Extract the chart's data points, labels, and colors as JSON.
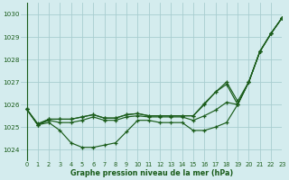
{
  "title": "Graphe pression niveau de la mer (hPa)",
  "background_color": "#d4ecee",
  "grid_color": "#a8cdd0",
  "line_color": "#1a5c1a",
  "xlim": [
    -0.5,
    23
  ],
  "ylim": [
    1023.5,
    1030.5
  ],
  "yticks": [
    1024,
    1025,
    1026,
    1027,
    1028,
    1029,
    1030
  ],
  "xticks": [
    0,
    1,
    2,
    3,
    4,
    5,
    6,
    7,
    8,
    9,
    10,
    11,
    12,
    13,
    14,
    15,
    16,
    17,
    18,
    19,
    20,
    21,
    22,
    23
  ],
  "series": [
    [
      1025.8,
      1025.1,
      1025.2,
      1024.85,
      1024.3,
      1024.1,
      1024.1,
      1024.2,
      1024.3,
      1024.8,
      1025.3,
      1025.3,
      1025.2,
      1025.2,
      1025.2,
      1024.85,
      1024.85,
      1025.0,
      1025.2,
      1026.0,
      1027.0,
      1028.35,
      1029.15,
      1029.85
    ],
    [
      1025.8,
      1025.1,
      1025.3,
      1025.2,
      1025.2,
      1025.3,
      1025.45,
      1025.3,
      1025.3,
      1025.45,
      1025.5,
      1025.45,
      1025.45,
      1025.45,
      1025.45,
      1025.3,
      1025.5,
      1025.75,
      1026.1,
      1026.0,
      1027.0,
      1028.35,
      1029.15,
      1029.85
    ],
    [
      1025.8,
      1025.1,
      1025.35,
      1025.35,
      1025.35,
      1025.45,
      1025.55,
      1025.4,
      1025.4,
      1025.55,
      1025.6,
      1025.5,
      1025.5,
      1025.5,
      1025.5,
      1025.5,
      1026.0,
      1026.55,
      1026.9,
      1026.0,
      1027.0,
      1028.35,
      1029.15,
      1029.85
    ],
    [
      1025.8,
      1025.15,
      1025.35,
      1025.35,
      1025.35,
      1025.45,
      1025.55,
      1025.4,
      1025.4,
      1025.55,
      1025.6,
      1025.5,
      1025.5,
      1025.5,
      1025.5,
      1025.5,
      1026.05,
      1026.55,
      1027.0,
      1026.15,
      1027.0,
      1028.35,
      1029.15,
      1029.85
    ]
  ]
}
